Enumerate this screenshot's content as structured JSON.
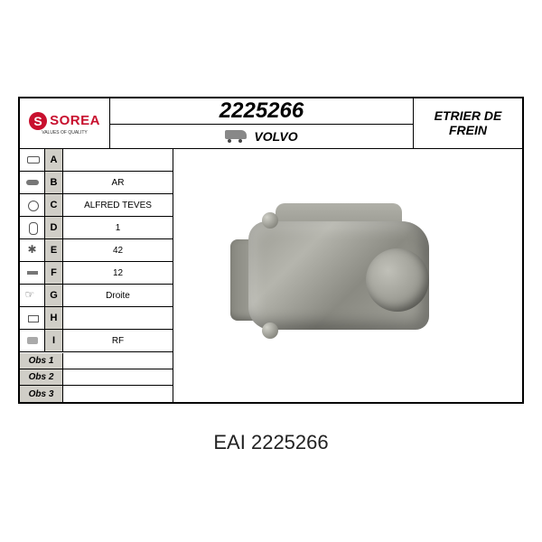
{
  "brand": {
    "name": "SOREA",
    "tagline": "VALUES OF QUALITY",
    "logo_color": "#c8102e"
  },
  "header": {
    "part_number": "2225266",
    "make": "VOLVO",
    "product_label": "Etrier de frein"
  },
  "specs": [
    {
      "letter": "A",
      "value": "",
      "icon": "ic-a"
    },
    {
      "letter": "B",
      "value": "AR",
      "icon": "ic-b"
    },
    {
      "letter": "C",
      "value": "ALFRED TEVES",
      "icon": "ic-c"
    },
    {
      "letter": "D",
      "value": "1",
      "icon": "ic-d"
    },
    {
      "letter": "E",
      "value": "42",
      "icon": "ic-e"
    },
    {
      "letter": "F",
      "value": "12",
      "icon": "ic-f"
    },
    {
      "letter": "G",
      "value": "Droite",
      "icon": "ic-g"
    },
    {
      "letter": "H",
      "value": "",
      "icon": "ic-h"
    },
    {
      "letter": "I",
      "value": "RF",
      "icon": "ic-i"
    }
  ],
  "observations": [
    {
      "label": "Obs 1",
      "value": ""
    },
    {
      "label": "Obs 2",
      "value": ""
    },
    {
      "label": "Obs 3",
      "value": ""
    }
  ],
  "caption": {
    "brand": "EAI",
    "number": "2225266"
  },
  "colors": {
    "border": "#000000",
    "row_header_bg": "#d0cec7",
    "metal_light": "#b5b5ad",
    "metal_dark": "#8a8a82"
  }
}
